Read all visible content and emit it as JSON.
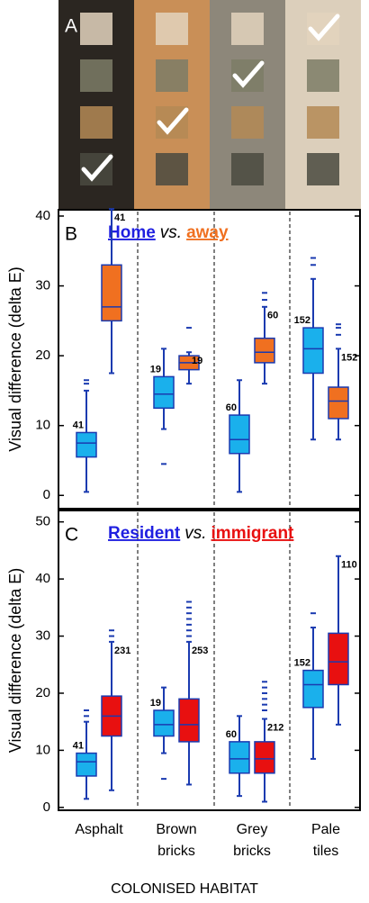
{
  "panel_a": {
    "label": "A"
  },
  "categories": [
    [
      "Asphalt"
    ],
    [
      "Brown",
      "bricks"
    ],
    [
      "Grey",
      "bricks"
    ],
    [
      "Pale",
      "tiles"
    ]
  ],
  "xlabel": "COLONISED HABITAT",
  "chart_data": [
    {
      "type": "box",
      "panel_label": "B",
      "title_joiner": "vs.",
      "ylabel": "Visual difference (delta E)",
      "ylim": [
        -1.9,
        40.9
      ],
      "yticks": [
        0,
        10,
        20,
        30,
        40
      ],
      "series": [
        {
          "name": "Home",
          "color": "#1ab0ec",
          "edge": "#1a3ab0",
          "title_color": "#1f1fe0",
          "n": [
            41,
            19,
            60,
            152
          ],
          "values": [
            {
              "min": 0.5,
              "q1": 5.5,
              "median": 7.5,
              "q3": 9,
              "max": 15,
              "outliers": [
                16,
                16.5
              ]
            },
            {
              "min": 9.5,
              "q1": 12.5,
              "median": 14.5,
              "q3": 17,
              "max": 21,
              "outliers": [
                4.5
              ]
            },
            {
              "min": 0.5,
              "q1": 6,
              "median": 8,
              "q3": 11.5,
              "max": 16.5,
              "outliers": []
            },
            {
              "min": 8,
              "q1": 17.5,
              "median": 21,
              "q3": 24,
              "max": 31,
              "outliers": [
                33,
                34
              ]
            }
          ]
        },
        {
          "name": "away",
          "color": "#f07020",
          "edge": "#1a3ab0",
          "title_color": "#f07020",
          "n": [
            41,
            19,
            60,
            152
          ],
          "values": [
            {
              "min": 17.5,
              "q1": 25,
              "median": 27,
              "q3": 33,
              "max": 41,
              "outliers": []
            },
            {
              "min": 16,
              "q1": 18,
              "median": 19,
              "q3": 20,
              "max": 20.5,
              "outliers": [
                24
              ]
            },
            {
              "min": 16,
              "q1": 19,
              "median": 20.5,
              "q3": 22.5,
              "max": 27,
              "outliers": [
                28,
                29
              ]
            },
            {
              "min": 8,
              "q1": 11,
              "median": 13.5,
              "q3": 15.5,
              "max": 21,
              "outliers": [
                23,
                24,
                24.5
              ]
            }
          ]
        }
      ]
    },
    {
      "type": "box",
      "panel_label": "C",
      "title_joiner": "vs.",
      "ylabel": "Visual difference (delta E)",
      "ylim": [
        -0.5,
        52
      ],
      "yticks": [
        0,
        10,
        20,
        30,
        40,
        50
      ],
      "series": [
        {
          "name": "Resident",
          "color": "#1ab0ec",
          "edge": "#1a3ab0",
          "title_color": "#1f1fe0",
          "n": [
            41,
            19,
            60,
            152
          ],
          "values": [
            {
              "min": 1.5,
              "q1": 5.5,
              "median": 8,
              "q3": 9.5,
              "max": 15,
              "outliers": [
                16,
                17
              ]
            },
            {
              "min": 9.5,
              "q1": 12.5,
              "median": 14.5,
              "q3": 17,
              "max": 21,
              "outliers": [
                5
              ]
            },
            {
              "min": 2,
              "q1": 6,
              "median": 8.5,
              "q3": 11.5,
              "max": 16,
              "outliers": []
            },
            {
              "min": 8.5,
              "q1": 17.5,
              "median": 21.5,
              "q3": 24,
              "max": 31.5,
              "outliers": [
                34
              ]
            }
          ]
        },
        {
          "name": "immigrant",
          "color": "#e81010",
          "edge": "#1a3ab0",
          "title_color": "#e81010",
          "n": [
            231,
            253,
            212,
            110
          ],
          "values": [
            {
              "min": 3,
              "q1": 12.5,
              "median": 16,
              "q3": 19.5,
              "max": 29,
              "outliers": [
                30,
                31
              ]
            },
            {
              "min": 4,
              "q1": 11.5,
              "median": 14.5,
              "q3": 19,
              "max": 29,
              "outliers": [
                30,
                31,
                32,
                33,
                34,
                35,
                36
              ]
            },
            {
              "min": 1,
              "q1": 6,
              "median": 8.5,
              "q3": 11.5,
              "max": 15.5,
              "outliers": [
                17,
                18,
                19,
                20,
                21,
                22
              ]
            },
            {
              "min": 14.5,
              "q1": 21.5,
              "median": 25.5,
              "q3": 30.5,
              "max": 44,
              "outliers": []
            }
          ]
        }
      ]
    }
  ]
}
